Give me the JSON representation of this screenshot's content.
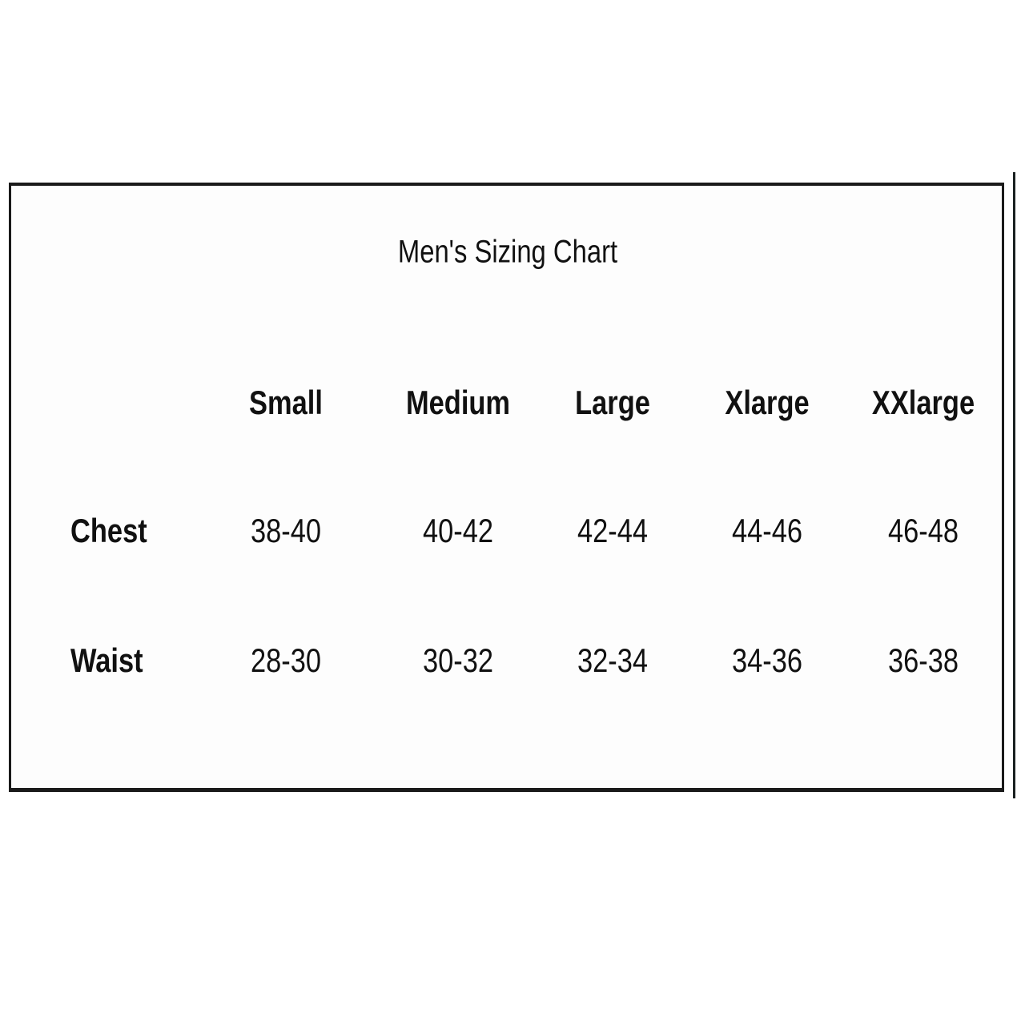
{
  "title": "Men's Sizing Chart",
  "table": {
    "columns": [
      "Small",
      "Medium",
      "Large",
      "Xlarge",
      "XXlarge"
    ],
    "rows": [
      {
        "label": "Chest",
        "values": [
          "38-40",
          "40-42",
          "42-44",
          "44-46",
          "46-48"
        ]
      },
      {
        "label": "Waist",
        "values": [
          "28-30",
          "30-32",
          "32-34",
          "34-36",
          "36-38"
        ]
      }
    ]
  }
}
